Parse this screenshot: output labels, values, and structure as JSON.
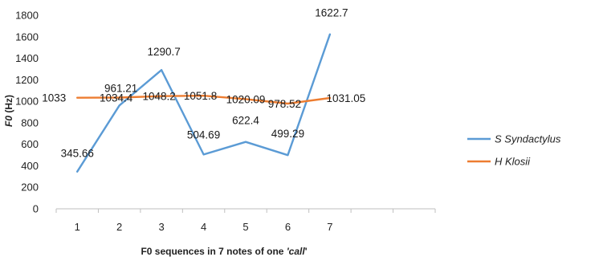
{
  "chart_data": {
    "type": "line",
    "x": [
      1,
      2,
      3,
      4,
      5,
      6,
      7
    ],
    "xticks": [
      "1",
      "2",
      "3",
      "4",
      "5",
      "6",
      "7"
    ],
    "xlim": [
      0.5,
      9.5
    ],
    "ylim": [
      0,
      1800
    ],
    "yticks": [
      0,
      200,
      400,
      600,
      800,
      1000,
      1200,
      1400,
      1600,
      1800
    ],
    "xlabel": {
      "prefix": "F0 sequences in 7 notes of one ",
      "emph": "'call",
      "suffix": "'"
    },
    "ylabel": {
      "emph": "F0",
      "suffix": " (Hz)"
    },
    "grid": false,
    "legend_position": "right",
    "series": [
      {
        "name": "S Syndactylus",
        "color": "#5b9bd5",
        "values": [
          345.66,
          961.21,
          1290.7,
          504.69,
          622.4,
          499.29,
          1622.7
        ],
        "labels": [
          "345.66",
          "961.21",
          "1290.7",
          "504.69",
          "622.4",
          "499.29",
          "1622.7"
        ]
      },
      {
        "name": "H Klosii",
        "color": "#ed7d31",
        "values": [
          1033,
          1034.4,
          1048.2,
          1051.8,
          1020.09,
          978.52,
          1031.05
        ],
        "labels": [
          "1033",
          "1034.4",
          "1048.2",
          "1051.8",
          "1020.09",
          "978.52",
          "1031.05"
        ]
      }
    ]
  }
}
